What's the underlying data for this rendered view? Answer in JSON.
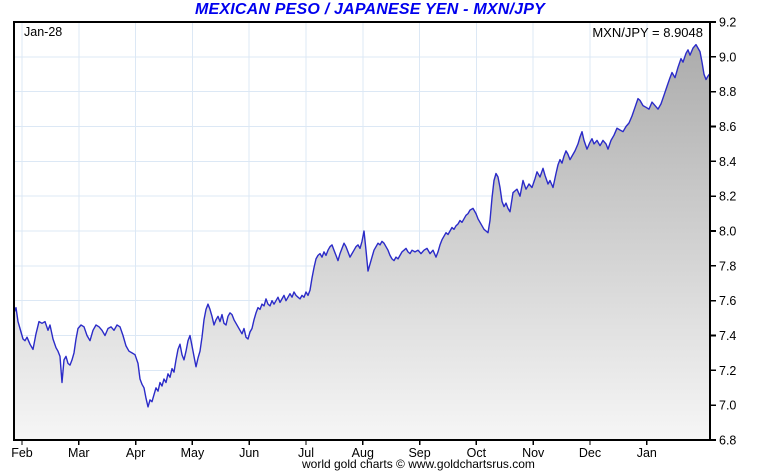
{
  "title": "MEXICAN PESO / JAPANESE YEN - MXN/JPY",
  "annotations": {
    "date_label": "Jan-28",
    "quote_label": "MXN/JPY = 8.9048"
  },
  "footer": "world gold charts © www.goldchartsrus.com",
  "colors": {
    "title": "#0000EE",
    "line": "#2B2BC8",
    "grid": "#DCE8F5",
    "area_top": "#A8A8A8",
    "area_bottom": "#F6F6F6",
    "border": "#000000",
    "text": "#000000"
  },
  "chart_data": {
    "type": "area",
    "title": "MEXICAN PESO / JAPANESE YEN - MXN/JPY",
    "current_date_label": "Jan-28",
    "current_quote": 8.9048,
    "x_tick_labels": [
      "Feb",
      "Mar",
      "Apr",
      "May",
      "Jun",
      "Jul",
      "Aug",
      "Sep",
      "Oct",
      "Nov",
      "Dec",
      "Jan"
    ],
    "y_ticks": [
      6.8,
      7.0,
      7.2,
      7.4,
      7.6,
      7.8,
      8.0,
      8.2,
      8.4,
      8.6,
      8.8,
      9.0,
      9.2
    ],
    "ylim": [
      6.8,
      9.2
    ],
    "grid": true,
    "legend_position": "none",
    "series": [
      {
        "name": "MXN/JPY",
        "points": [
          [
            0.0,
            7.53
          ],
          [
            0.0029,
            7.56
          ],
          [
            0.0057,
            7.48
          ],
          [
            0.0086,
            7.44
          ],
          [
            0.0129,
            7.38
          ],
          [
            0.0158,
            7.37
          ],
          [
            0.0187,
            7.39
          ],
          [
            0.023,
            7.35
          ],
          [
            0.0273,
            7.32
          ],
          [
            0.0316,
            7.41
          ],
          [
            0.0359,
            7.48
          ],
          [
            0.0402,
            7.47
          ],
          [
            0.0445,
            7.48
          ],
          [
            0.0489,
            7.43
          ],
          [
            0.0517,
            7.46
          ],
          [
            0.056,
            7.38
          ],
          [
            0.0603,
            7.33
          ],
          [
            0.0632,
            7.31
          ],
          [
            0.0661,
            7.28
          ],
          [
            0.069,
            7.13
          ],
          [
            0.0718,
            7.26
          ],
          [
            0.0747,
            7.28
          ],
          [
            0.0776,
            7.24
          ],
          [
            0.0805,
            7.23
          ],
          [
            0.0833,
            7.26
          ],
          [
            0.0862,
            7.3
          ],
          [
            0.0891,
            7.38
          ],
          [
            0.092,
            7.44
          ],
          [
            0.0963,
            7.46
          ],
          [
            0.1006,
            7.45
          ],
          [
            0.1049,
            7.4
          ],
          [
            0.1092,
            7.37
          ],
          [
            0.1135,
            7.43
          ],
          [
            0.1178,
            7.46
          ],
          [
            0.1221,
            7.45
          ],
          [
            0.1264,
            7.43
          ],
          [
            0.1307,
            7.4
          ],
          [
            0.1351,
            7.44
          ],
          [
            0.1394,
            7.45
          ],
          [
            0.1437,
            7.43
          ],
          [
            0.148,
            7.46
          ],
          [
            0.1523,
            7.45
          ],
          [
            0.1566,
            7.4
          ],
          [
            0.1609,
            7.34
          ],
          [
            0.1652,
            7.31
          ],
          [
            0.1695,
            7.3
          ],
          [
            0.1739,
            7.29
          ],
          [
            0.1782,
            7.24
          ],
          [
            0.181,
            7.15
          ],
          [
            0.1839,
            7.12
          ],
          [
            0.1868,
            7.1
          ],
          [
            0.1897,
            7.04
          ],
          [
            0.1925,
            6.99
          ],
          [
            0.1954,
            7.03
          ],
          [
            0.1983,
            7.02
          ],
          [
            0.2011,
            7.06
          ],
          [
            0.204,
            7.1
          ],
          [
            0.2069,
            7.08
          ],
          [
            0.2098,
            7.13
          ],
          [
            0.2126,
            7.11
          ],
          [
            0.2155,
            7.15
          ],
          [
            0.2184,
            7.13
          ],
          [
            0.2213,
            7.18
          ],
          [
            0.2241,
            7.16
          ],
          [
            0.227,
            7.21
          ],
          [
            0.2299,
            7.19
          ],
          [
            0.2328,
            7.26
          ],
          [
            0.2356,
            7.32
          ],
          [
            0.2385,
            7.35
          ],
          [
            0.2414,
            7.29
          ],
          [
            0.2443,
            7.26
          ],
          [
            0.2471,
            7.31
          ],
          [
            0.25,
            7.37
          ],
          [
            0.2529,
            7.4
          ],
          [
            0.2557,
            7.34
          ],
          [
            0.2586,
            7.28
          ],
          [
            0.2615,
            7.22
          ],
          [
            0.2644,
            7.27
          ],
          [
            0.2672,
            7.31
          ],
          [
            0.2701,
            7.39
          ],
          [
            0.273,
            7.49
          ],
          [
            0.2759,
            7.55
          ],
          [
            0.2787,
            7.58
          ],
          [
            0.2816,
            7.55
          ],
          [
            0.2845,
            7.51
          ],
          [
            0.2874,
            7.46
          ],
          [
            0.2902,
            7.49
          ],
          [
            0.2931,
            7.51
          ],
          [
            0.296,
            7.48
          ],
          [
            0.2989,
            7.52
          ],
          [
            0.3017,
            7.47
          ],
          [
            0.3046,
            7.46
          ],
          [
            0.3075,
            7.51
          ],
          [
            0.3103,
            7.53
          ],
          [
            0.3132,
            7.52
          ],
          [
            0.3161,
            7.49
          ],
          [
            0.319,
            7.47
          ],
          [
            0.3218,
            7.45
          ],
          [
            0.3247,
            7.43
          ],
          [
            0.3276,
            7.41
          ],
          [
            0.3305,
            7.44
          ],
          [
            0.3333,
            7.39
          ],
          [
            0.3362,
            7.38
          ],
          [
            0.3391,
            7.42
          ],
          [
            0.342,
            7.44
          ],
          [
            0.3448,
            7.49
          ],
          [
            0.3477,
            7.53
          ],
          [
            0.3506,
            7.56
          ],
          [
            0.3534,
            7.55
          ],
          [
            0.3563,
            7.58
          ],
          [
            0.3592,
            7.57
          ],
          [
            0.3621,
            7.61
          ],
          [
            0.3649,
            7.58
          ],
          [
            0.3678,
            7.57
          ],
          [
            0.3707,
            7.6
          ],
          [
            0.3736,
            7.58
          ],
          [
            0.3764,
            7.6
          ],
          [
            0.3793,
            7.62
          ],
          [
            0.3822,
            7.59
          ],
          [
            0.3851,
            7.61
          ],
          [
            0.3879,
            7.63
          ],
          [
            0.3908,
            7.6
          ],
          [
            0.3937,
            7.62
          ],
          [
            0.3966,
            7.64
          ],
          [
            0.3994,
            7.62
          ],
          [
            0.4023,
            7.65
          ],
          [
            0.4052,
            7.63
          ],
          [
            0.408,
            7.62
          ],
          [
            0.4109,
            7.61
          ],
          [
            0.4138,
            7.63
          ],
          [
            0.4167,
            7.62
          ],
          [
            0.4195,
            7.65
          ],
          [
            0.4224,
            7.63
          ],
          [
            0.4253,
            7.66
          ],
          [
            0.4282,
            7.73
          ],
          [
            0.431,
            7.79
          ],
          [
            0.4339,
            7.84
          ],
          [
            0.4368,
            7.86
          ],
          [
            0.4397,
            7.87
          ],
          [
            0.4425,
            7.85
          ],
          [
            0.4454,
            7.88
          ],
          [
            0.4483,
            7.86
          ],
          [
            0.4511,
            7.89
          ],
          [
            0.454,
            7.91
          ],
          [
            0.4569,
            7.92
          ],
          [
            0.4598,
            7.89
          ],
          [
            0.4626,
            7.86
          ],
          [
            0.4655,
            7.83
          ],
          [
            0.4684,
            7.87
          ],
          [
            0.4713,
            7.9
          ],
          [
            0.4741,
            7.93
          ],
          [
            0.477,
            7.91
          ],
          [
            0.4799,
            7.88
          ],
          [
            0.4828,
            7.85
          ],
          [
            0.4856,
            7.87
          ],
          [
            0.4885,
            7.89
          ],
          [
            0.4914,
            7.91
          ],
          [
            0.4943,
            7.92
          ],
          [
            0.4971,
            7.9
          ],
          [
            0.5,
            7.94
          ],
          [
            0.5029,
            8.0
          ],
          [
            0.5057,
            7.89
          ],
          [
            0.5086,
            7.77
          ],
          [
            0.5115,
            7.81
          ],
          [
            0.5144,
            7.85
          ],
          [
            0.5172,
            7.89
          ],
          [
            0.5201,
            7.91
          ],
          [
            0.523,
            7.93
          ],
          [
            0.5259,
            7.92
          ],
          [
            0.5287,
            7.94
          ],
          [
            0.5316,
            7.93
          ],
          [
            0.5345,
            7.91
          ],
          [
            0.5374,
            7.89
          ],
          [
            0.5402,
            7.86
          ],
          [
            0.5431,
            7.84
          ],
          [
            0.546,
            7.83
          ],
          [
            0.5489,
            7.85
          ],
          [
            0.5517,
            7.84
          ],
          [
            0.5546,
            7.86
          ],
          [
            0.5575,
            7.88
          ],
          [
            0.5603,
            7.89
          ],
          [
            0.5632,
            7.9
          ],
          [
            0.5661,
            7.88
          ],
          [
            0.569,
            7.87
          ],
          [
            0.5718,
            7.89
          ],
          [
            0.5761,
            7.88
          ],
          [
            0.5805,
            7.89
          ],
          [
            0.5848,
            7.87
          ],
          [
            0.5891,
            7.89
          ],
          [
            0.5934,
            7.9
          ],
          [
            0.5977,
            7.87
          ],
          [
            0.602,
            7.89
          ],
          [
            0.6063,
            7.85
          ],
          [
            0.6092,
            7.88
          ],
          [
            0.6121,
            7.92
          ],
          [
            0.6149,
            7.95
          ],
          [
            0.6178,
            7.97
          ],
          [
            0.6207,
            7.99
          ],
          [
            0.6236,
            7.98
          ],
          [
            0.6264,
            8.0
          ],
          [
            0.6293,
            8.02
          ],
          [
            0.6322,
            8.01
          ],
          [
            0.6351,
            8.03
          ],
          [
            0.6379,
            8.04
          ],
          [
            0.6408,
            8.06
          ],
          [
            0.6437,
            8.05
          ],
          [
            0.6466,
            8.07
          ],
          [
            0.6494,
            8.09
          ],
          [
            0.6523,
            8.1
          ],
          [
            0.6552,
            8.12
          ],
          [
            0.6595,
            8.13
          ],
          [
            0.6638,
            8.1
          ],
          [
            0.6667,
            8.07
          ],
          [
            0.6695,
            8.05
          ],
          [
            0.6724,
            8.03
          ],
          [
            0.6753,
            8.01
          ],
          [
            0.6782,
            8.0
          ],
          [
            0.681,
            7.99
          ],
          [
            0.6839,
            8.06
          ],
          [
            0.6868,
            8.19
          ],
          [
            0.6897,
            8.29
          ],
          [
            0.6925,
            8.33
          ],
          [
            0.6954,
            8.31
          ],
          [
            0.6983,
            8.25
          ],
          [
            0.7011,
            8.17
          ],
          [
            0.704,
            8.14
          ],
          [
            0.7069,
            8.16
          ],
          [
            0.7098,
            8.13
          ],
          [
            0.7126,
            8.11
          ],
          [
            0.7169,
            8.22
          ],
          [
            0.7198,
            8.23
          ],
          [
            0.7227,
            8.24
          ],
          [
            0.727,
            8.2
          ],
          [
            0.7313,
            8.29
          ],
          [
            0.7356,
            8.24
          ],
          [
            0.7399,
            8.27
          ],
          [
            0.7443,
            8.25
          ],
          [
            0.7486,
            8.3
          ],
          [
            0.7514,
            8.34
          ],
          [
            0.7557,
            8.31
          ],
          [
            0.76,
            8.36
          ],
          [
            0.7629,
            8.32
          ],
          [
            0.7672,
            8.27
          ],
          [
            0.7701,
            8.29
          ],
          [
            0.7744,
            8.25
          ],
          [
            0.7787,
            8.33
          ],
          [
            0.7816,
            8.38
          ],
          [
            0.7845,
            8.41
          ],
          [
            0.7874,
            8.39
          ],
          [
            0.7902,
            8.43
          ],
          [
            0.7931,
            8.46
          ],
          [
            0.796,
            8.44
          ],
          [
            0.7989,
            8.41
          ],
          [
            0.8017,
            8.43
          ],
          [
            0.806,
            8.46
          ],
          [
            0.8103,
            8.5
          ],
          [
            0.8132,
            8.54
          ],
          [
            0.8161,
            8.57
          ],
          [
            0.819,
            8.52
          ],
          [
            0.8233,
            8.47
          ],
          [
            0.8276,
            8.51
          ],
          [
            0.8305,
            8.53
          ],
          [
            0.8333,
            8.5
          ],
          [
            0.8376,
            8.52
          ],
          [
            0.842,
            8.49
          ],
          [
            0.8463,
            8.52
          ],
          [
            0.8506,
            8.5
          ],
          [
            0.8534,
            8.47
          ],
          [
            0.8578,
            8.52
          ],
          [
            0.8621,
            8.55
          ],
          [
            0.8664,
            8.59
          ],
          [
            0.8707,
            8.58
          ],
          [
            0.875,
            8.57
          ],
          [
            0.8793,
            8.6
          ],
          [
            0.8836,
            8.62
          ],
          [
            0.8879,
            8.66
          ],
          [
            0.8922,
            8.71
          ],
          [
            0.8966,
            8.76
          ],
          [
            0.8994,
            8.75
          ],
          [
            0.9037,
            8.72
          ],
          [
            0.908,
            8.71
          ],
          [
            0.9124,
            8.7
          ],
          [
            0.9167,
            8.74
          ],
          [
            0.921,
            8.72
          ],
          [
            0.9253,
            8.7
          ],
          [
            0.9296,
            8.73
          ],
          [
            0.9339,
            8.78
          ],
          [
            0.9382,
            8.83
          ],
          [
            0.9425,
            8.88
          ],
          [
            0.9454,
            8.91
          ],
          [
            0.9497,
            8.88
          ],
          [
            0.954,
            8.94
          ],
          [
            0.9583,
            8.99
          ],
          [
            0.9612,
            8.97
          ],
          [
            0.9655,
            9.02
          ],
          [
            0.9684,
            9.04
          ],
          [
            0.9713,
            9.01
          ],
          [
            0.9756,
            9.05
          ],
          [
            0.9799,
            9.07
          ],
          [
            0.9828,
            9.05
          ],
          [
            0.9856,
            9.03
          ],
          [
            0.9885,
            8.97
          ],
          [
            0.9914,
            8.9
          ],
          [
            0.9943,
            8.87
          ],
          [
            0.9971,
            8.89
          ],
          [
            1.0,
            8.9048
          ]
        ]
      }
    ]
  }
}
